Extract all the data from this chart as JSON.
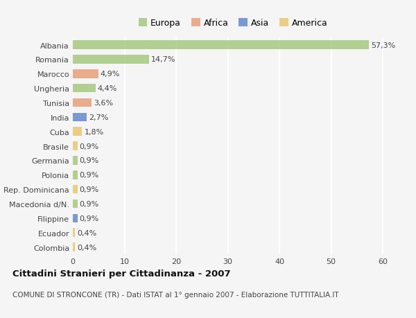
{
  "countries": [
    "Albania",
    "Romania",
    "Marocco",
    "Ungheria",
    "Tunisia",
    "India",
    "Cuba",
    "Brasile",
    "Germania",
    "Polonia",
    "Rep. Dominicana",
    "Macedonia d/N.",
    "Filippine",
    "Ecuador",
    "Colombia"
  ],
  "values": [
    57.3,
    14.7,
    4.9,
    4.4,
    3.6,
    2.7,
    1.8,
    0.9,
    0.9,
    0.9,
    0.9,
    0.9,
    0.9,
    0.4,
    0.4
  ],
  "labels": [
    "57,3%",
    "14,7%",
    "4,9%",
    "4,4%",
    "3,6%",
    "2,7%",
    "1,8%",
    "0,9%",
    "0,9%",
    "0,9%",
    "0,9%",
    "0,9%",
    "0,9%",
    "0,4%",
    "0,4%"
  ],
  "continents": [
    "Europa",
    "Europa",
    "Africa",
    "Europa",
    "Africa",
    "Asia",
    "America",
    "America",
    "Europa",
    "Europa",
    "America",
    "Europa",
    "Asia",
    "America",
    "America"
  ],
  "colors": {
    "Europa": "#a8c880",
    "Africa": "#e8a07a",
    "Asia": "#6688cc",
    "America": "#e8c870"
  },
  "legend_labels": [
    "Europa",
    "Africa",
    "Asia",
    "America"
  ],
  "legend_colors": [
    "#a8c880",
    "#e8a07a",
    "#6688cc",
    "#e8c870"
  ],
  "title": "Cittadini Stranieri per Cittadinanza - 2007",
  "subtitle": "COMUNE DI STRONCONE (TR) - Dati ISTAT al 1° gennaio 2007 - Elaborazione TUTTITALIA.IT",
  "xlim": [
    0,
    62
  ],
  "xticks": [
    0,
    10,
    20,
    30,
    40,
    50,
    60
  ],
  "bar_height": 0.6,
  "background_color": "#f5f5f5",
  "grid_color": "#ffffff",
  "label_fontsize": 8.0,
  "tick_fontsize": 8.0,
  "title_fontsize": 9.5,
  "subtitle_fontsize": 7.5
}
